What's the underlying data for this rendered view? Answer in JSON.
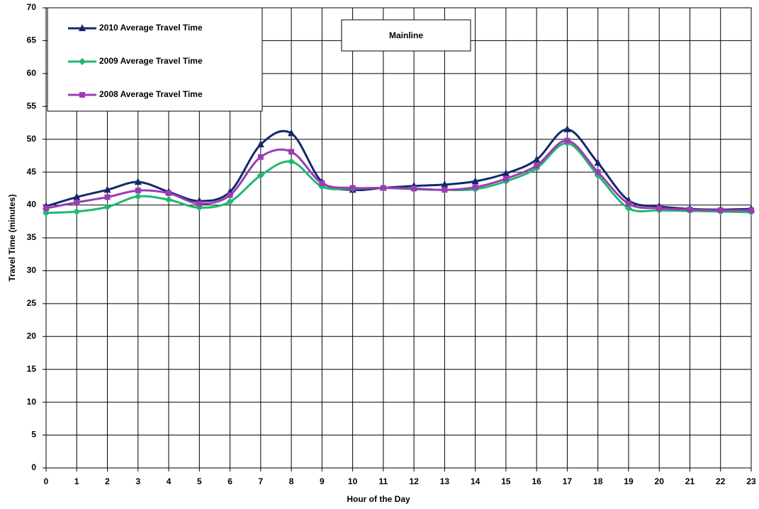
{
  "chart_data": {
    "type": "line",
    "title": "Mainline",
    "x_label": "Hour of the Day",
    "y_label": "Travel Time (minutes)",
    "x": [
      0,
      1,
      2,
      3,
      4,
      5,
      6,
      7,
      8,
      9,
      10,
      11,
      12,
      13,
      14,
      15,
      16,
      17,
      18,
      19,
      20,
      21,
      22,
      23
    ],
    "xlim": [
      0,
      23
    ],
    "xticks": [
      0,
      1,
      2,
      3,
      4,
      5,
      6,
      7,
      8,
      9,
      10,
      11,
      12,
      13,
      14,
      15,
      16,
      17,
      18,
      19,
      20,
      21,
      22,
      23
    ],
    "ylim": [
      0,
      70
    ],
    "yticks": [
      0,
      5,
      10,
      15,
      20,
      25,
      30,
      35,
      40,
      45,
      50,
      55,
      60,
      65,
      70
    ],
    "grid": true,
    "legend": "upper left",
    "series": [
      {
        "name": "2010 Average  Travel Time",
        "color": "#14286a",
        "marker": "triangle",
        "values": [
          39.8,
          41.2,
          42.3,
          43.5,
          42.0,
          40.6,
          42.0,
          49.2,
          50.9,
          43.5,
          42.3,
          42.6,
          42.9,
          43.1,
          43.6,
          44.8,
          46.9,
          51.5,
          46.4,
          40.7,
          39.8,
          39.4,
          39.3,
          39.4
        ]
      },
      {
        "name": "2009 Average  Travel Time",
        "color": "#1fb870",
        "marker": "diamond",
        "values": [
          38.8,
          39.0,
          39.7,
          41.3,
          40.8,
          39.6,
          40.5,
          44.5,
          46.6,
          42.8,
          42.5,
          42.6,
          42.4,
          42.3,
          42.4,
          43.6,
          45.6,
          49.4,
          44.5,
          39.5,
          39.2,
          39.1,
          39.0,
          38.9
        ]
      },
      {
        "name": "2008 Average  Travel Time",
        "color": "#9c3cb4",
        "marker": "square",
        "values": [
          39.5,
          40.4,
          41.2,
          42.2,
          41.8,
          40.2,
          41.5,
          47.3,
          48.1,
          43.3,
          42.6,
          42.6,
          42.5,
          42.3,
          42.7,
          44.0,
          46.0,
          49.8,
          45.0,
          40.2,
          39.5,
          39.3,
          39.2,
          39.2
        ]
      }
    ]
  }
}
